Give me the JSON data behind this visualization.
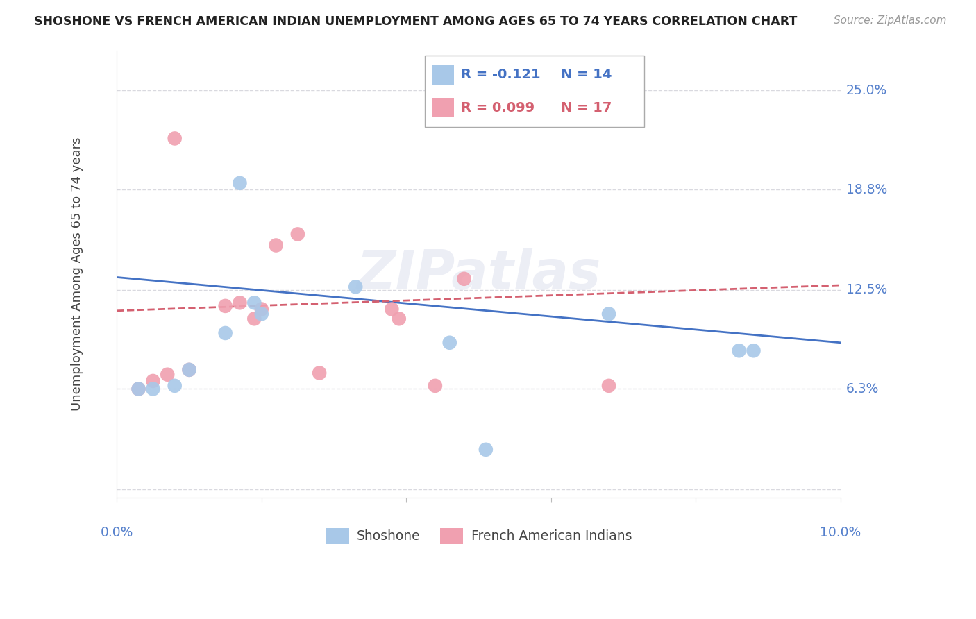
{
  "title": "SHOSHONE VS FRENCH AMERICAN INDIAN UNEMPLOYMENT AMONG AGES 65 TO 74 YEARS CORRELATION CHART",
  "source": "Source: ZipAtlas.com",
  "ylabel": "Unemployment Among Ages 65 to 74 years",
  "xlim": [
    0.0,
    0.1
  ],
  "ylim": [
    -0.005,
    0.275
  ],
  "yticks": [
    0.0,
    0.063,
    0.125,
    0.188,
    0.25
  ],
  "ytick_labels": [
    "",
    "6.3%",
    "12.5%",
    "18.8%",
    "25.0%"
  ],
  "grid_color": "#d0d0d8",
  "background_color": "#ffffff",
  "shoshone_color": "#a8c8e8",
  "french_color": "#f0a0b0",
  "shoshone_line_color": "#4472c4",
  "french_line_color": "#d46070",
  "legend_R_shoshone": "-0.121",
  "legend_N_shoshone": "14",
  "legend_R_french": "0.099",
  "legend_N_french": "17",
  "shoshone_x": [
    0.003,
    0.005,
    0.008,
    0.01,
    0.015,
    0.017,
    0.019,
    0.02,
    0.033,
    0.046,
    0.051,
    0.068,
    0.086,
    0.088
  ],
  "shoshone_y": [
    0.063,
    0.063,
    0.065,
    0.075,
    0.098,
    0.192,
    0.117,
    0.11,
    0.127,
    0.092,
    0.025,
    0.11,
    0.087,
    0.087
  ],
  "french_x": [
    0.003,
    0.005,
    0.007,
    0.008,
    0.01,
    0.015,
    0.017,
    0.019,
    0.02,
    0.022,
    0.025,
    0.028,
    0.038,
    0.039,
    0.044,
    0.048,
    0.068
  ],
  "french_y": [
    0.063,
    0.068,
    0.072,
    0.22,
    0.075,
    0.115,
    0.117,
    0.107,
    0.113,
    0.153,
    0.16,
    0.073,
    0.113,
    0.107,
    0.065,
    0.132,
    0.065
  ],
  "shoshone_line_x": [
    0.0,
    0.1
  ],
  "shoshone_line_y": [
    0.133,
    0.092
  ],
  "french_line_x": [
    0.0,
    0.1
  ],
  "french_line_y": [
    0.112,
    0.128
  ]
}
